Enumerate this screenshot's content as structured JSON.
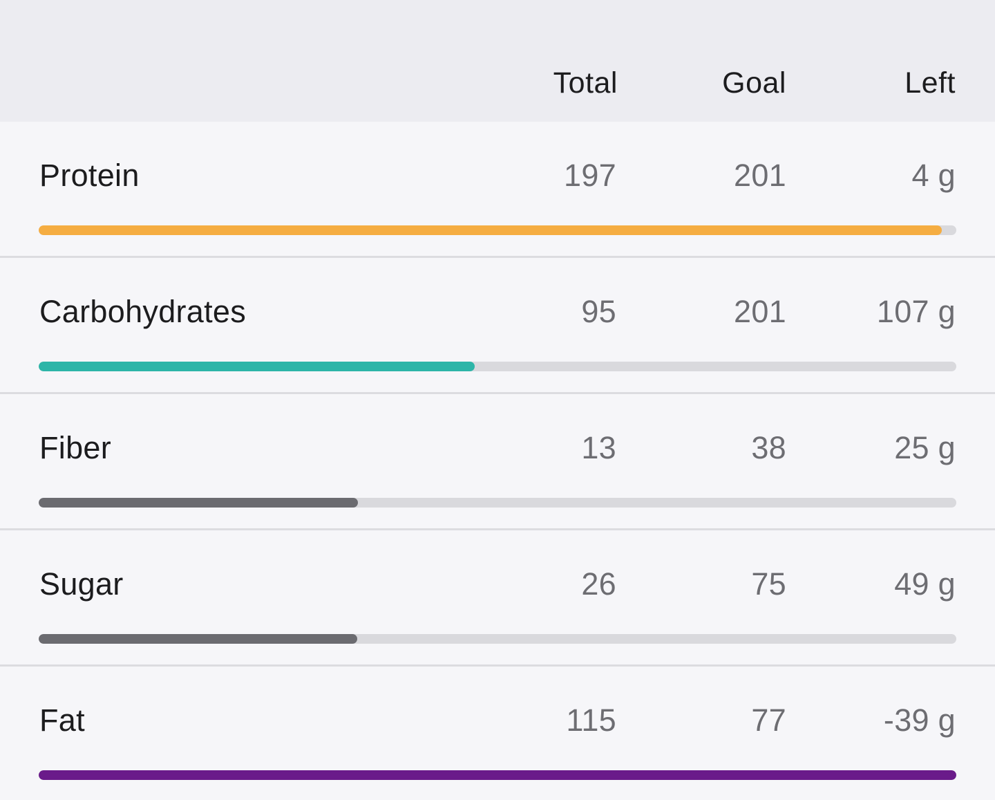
{
  "header": {
    "total_label": "Total",
    "goal_label": "Goal",
    "left_label": "Left"
  },
  "rows": [
    {
      "name": "Protein",
      "total": "197",
      "goal": "201",
      "left": "4 g",
      "progress": 0.984,
      "color": "#f5ad42"
    },
    {
      "name": "Carbohydrates",
      "total": "95",
      "goal": "201",
      "left": "107 g",
      "progress": 0.475,
      "color": "#2db5a8"
    },
    {
      "name": "Fiber",
      "total": "13",
      "goal": "38",
      "left": "25 g",
      "progress": 0.348,
      "color": "#6b6b70"
    },
    {
      "name": "Sugar",
      "total": "26",
      "goal": "75",
      "left": "49 g",
      "progress": 0.347,
      "color": "#6b6b70"
    },
    {
      "name": "Fat",
      "total": "115",
      "goal": "77",
      "left": "-39 g",
      "progress": 1.0,
      "color": "#6a1b8a"
    }
  ]
}
